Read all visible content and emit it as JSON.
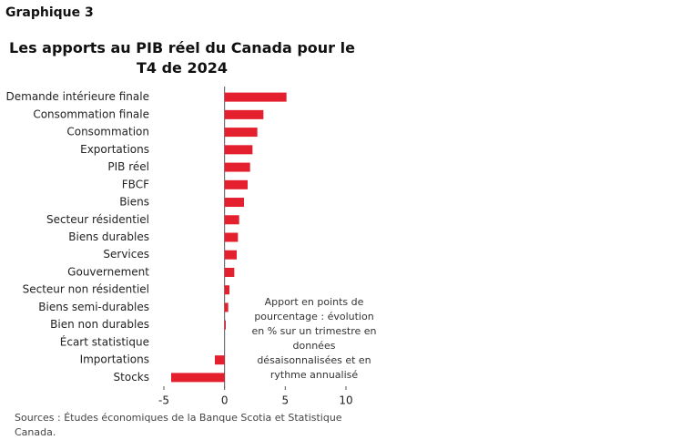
{
  "chart_data": {
    "type": "bar",
    "orientation": "horizontal",
    "label": "Graphique 3",
    "title": "Les apports au PIB réel du Canada pour le T4 de 2024",
    "categories": [
      "Demande intérieure finale",
      "Consommation finale",
      "Consommation",
      "Exportations",
      "PIB réel",
      "FBCF",
      "Biens",
      "Secteur résidentiel",
      "Biens durables",
      "Services",
      "Gouvernement",
      "Secteur non résidentiel",
      "Biens semi-durables",
      "Bien non durables",
      "Écart statistique",
      "Importations",
      "Stocks"
    ],
    "values": [
      5.1,
      3.2,
      2.7,
      2.3,
      2.1,
      1.9,
      1.6,
      1.2,
      1.1,
      1.0,
      0.8,
      0.4,
      0.3,
      0.1,
      0,
      -0.8,
      -4.4
    ],
    "color": "#e4202e",
    "xlim": [
      -5,
      10
    ],
    "xticks": [
      -5,
      0,
      5,
      10
    ],
    "annotation": "Apport en points de pourcentage : évolution en % sur un trimestre en données désaisonnalisées et en rythme annualisé",
    "source": "Sources : Études économiques de la Banque Scotia et Statistique Canada."
  }
}
